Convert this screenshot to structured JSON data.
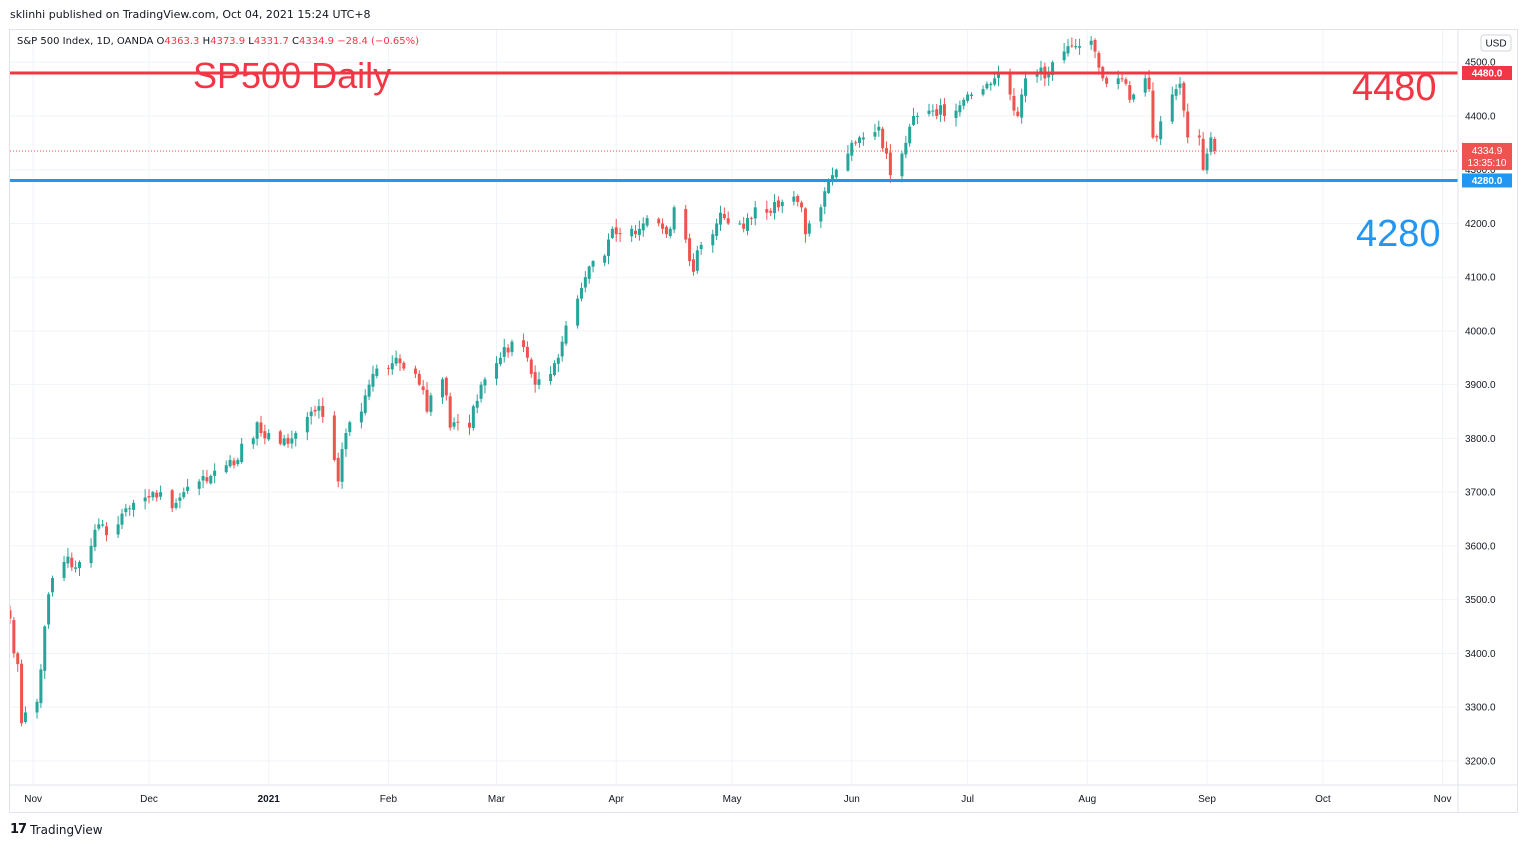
{
  "published_line": "sklinhi published on TradingView.com, Oct 04, 2021 15:24 UTC+8",
  "footer": {
    "logo_glyph": "17",
    "brand": "TradingView"
  },
  "legend": {
    "symbol": "S&P 500 Index, 1D, OANDA",
    "o_label": "O",
    "o_value": "4363.3",
    "h_label": "H",
    "h_value": "4373.9",
    "l_label": "L",
    "l_value": "4331.7",
    "c_label": "C",
    "c_value": "4334.9",
    "change": "−28.4 (−0.65%)"
  },
  "currency_badge": "USD",
  "colors": {
    "up": "#26a69a",
    "down": "#ef5350",
    "resistance": "#f23645",
    "support": "#2196f3",
    "grid": "#f0f3fa"
  },
  "chart_data": {
    "type": "candlestick",
    "title": "SP500 Daily",
    "y_ticks": [
      "3200.0",
      "3300.0",
      "3400.0",
      "3500.0",
      "3600.0",
      "3700.0",
      "3800.0",
      "3900.0",
      "4000.0",
      "4100.0",
      "4200.0",
      "4300.0",
      "4400.0",
      "4500.0"
    ],
    "x_ticks": [
      "Nov",
      "Dec",
      "2021",
      "Feb",
      "Mar",
      "Apr",
      "May",
      "Jun",
      "Jul",
      "Aug",
      "Sep",
      "Oct",
      "Nov"
    ],
    "ylim": [
      3155,
      4560
    ],
    "xlim": [
      "2020-10-26",
      "2021-11-05"
    ],
    "horizontal_lines": [
      {
        "value": 4480,
        "annotation": "4480",
        "badge": "4480.0",
        "color": "#f23645"
      },
      {
        "value": 4280,
        "annotation": "4280",
        "badge": "4280.0",
        "color": "#2196f3"
      }
    ],
    "last_price": {
      "value": 4334.9,
      "badge": "4334.9",
      "countdown": "13:35:10"
    },
    "closes_daily_approx": [
      3465,
      3400,
      3380,
      3270,
      3290,
      3310,
      3370,
      3450,
      3510,
      3540,
      3570,
      3580,
      3560,
      3560,
      3570,
      3600,
      3630,
      3640,
      3640,
      3620,
      3640,
      3660,
      3670,
      3670,
      3680,
      3690,
      3690,
      3700,
      3690,
      3700,
      3670,
      3680,
      3690,
      3700,
      3710,
      3720,
      3730,
      3720,
      3730,
      3740,
      3750,
      3760,
      3750,
      3760,
      3790,
      3800,
      3830,
      3810,
      3800,
      3810,
      3790,
      3800,
      3790,
      3800,
      3810,
      3840,
      3850,
      3850,
      3860,
      3840,
      3760,
      3720,
      3780,
      3810,
      3830,
      3850,
      3880,
      3900,
      3920,
      3930,
      3930,
      3940,
      3950,
      3940,
      3930,
      3920,
      3900,
      3890,
      3850,
      3880,
      3910,
      3880,
      3820,
      3830,
      3830,
      3820,
      3860,
      3870,
      3900,
      3910,
      3940,
      3950,
      3970,
      3960,
      3980,
      3970,
      3950,
      3920,
      3900,
      3910,
      3920,
      3940,
      3950,
      3980,
      4010,
      4060,
      4080,
      4100,
      4120,
      4130,
      4140,
      4170,
      4190,
      4180,
      4180,
      4190,
      4180,
      4190,
      4200,
      4210,
      4200,
      4190,
      4180,
      4190,
      4230,
      4170,
      4130,
      4110,
      4150,
      4160,
      4180,
      4200,
      4220,
      4210,
      4200,
      4200,
      4190,
      4210,
      4210,
      4230,
      4220,
      4220,
      4240,
      4230,
      4240,
      4250,
      4240,
      4230,
      4180,
      4200,
      4230,
      4260,
      4280,
      4290,
      4300,
      4330,
      4350,
      4350,
      4360,
      4360,
      4370,
      4380,
      4340,
      4330,
      4290,
      4330,
      4350,
      4380,
      4400,
      4400,
      4410,
      4410,
      4400,
      4420,
      4400,
      4410,
      4420,
      4430,
      4440,
      4440,
      4450,
      4460,
      4460,
      4470,
      4480,
      4440,
      4410,
      4400,
      4440,
      4470,
      4480,
      4490,
      4470,
      4480,
      4500,
      4520,
      4530,
      4530,
      4530,
      4530,
      4540,
      4520,
      4490,
      4470,
      4460,
      4470,
      4470,
      4460,
      4430,
      4440,
      4470,
      4450,
      4360,
      4360,
      4390,
      4440,
      4450,
      4460,
      4410,
      4360,
      4360,
      4300,
      4330,
      4360,
      4334.9
    ]
  }
}
